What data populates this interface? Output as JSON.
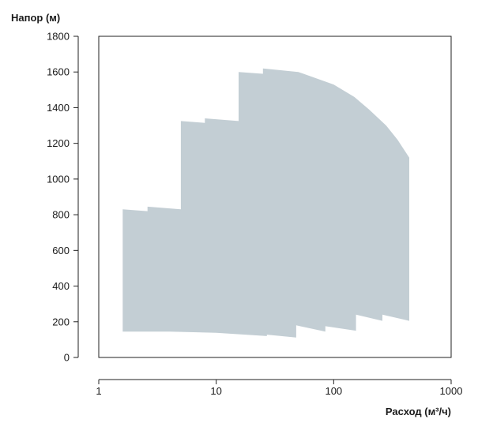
{
  "chart_data": {
    "type": "area",
    "ylabel": "Напор (м)",
    "xlabel": "Расход (м³/ч)",
    "x_scale": "log",
    "xlim": [
      1,
      1000
    ],
    "ylim": [
      0,
      1800
    ],
    "x_ticks": [
      1,
      10,
      100,
      1000
    ],
    "x_tick_labels": [
      "1",
      "10",
      "100",
      "1000"
    ],
    "y_ticks": [
      0,
      200,
      400,
      600,
      800,
      1000,
      1200,
      1400,
      1600,
      1800
    ],
    "y_tick_labels": [
      "0",
      "200",
      "400",
      "600",
      "800",
      "1000",
      "1200",
      "1400",
      "1600",
      "1800"
    ],
    "grid": false,
    "fill_color": "#c3ced4",
    "series": [
      {
        "boundary": [
          {
            "x": 1.6,
            "y": 830
          },
          {
            "x": 2.6,
            "y": 820
          },
          {
            "x": 2.6,
            "y": 845
          },
          {
            "x": 5.0,
            "y": 830
          },
          {
            "x": 5.0,
            "y": 1325
          },
          {
            "x": 8.0,
            "y": 1315
          },
          {
            "x": 8.0,
            "y": 1340
          },
          {
            "x": 15.5,
            "y": 1325
          },
          {
            "x": 15.5,
            "y": 1600
          },
          {
            "x": 25.0,
            "y": 1590
          },
          {
            "x": 25.0,
            "y": 1620
          },
          {
            "x": 50.0,
            "y": 1600
          },
          {
            "x": 100.0,
            "y": 1530
          },
          {
            "x": 150.0,
            "y": 1460
          },
          {
            "x": 200.0,
            "y": 1390
          },
          {
            "x": 280.0,
            "y": 1300
          },
          {
            "x": 350.0,
            "y": 1220
          },
          {
            "x": 440.0,
            "y": 1120
          },
          {
            "x": 440.0,
            "y": 205
          },
          {
            "x": 260.0,
            "y": 240
          },
          {
            "x": 260.0,
            "y": 205
          },
          {
            "x": 155.0,
            "y": 240
          },
          {
            "x": 155.0,
            "y": 150
          },
          {
            "x": 85.0,
            "y": 175
          },
          {
            "x": 85.0,
            "y": 145
          },
          {
            "x": 48.0,
            "y": 180
          },
          {
            "x": 48.0,
            "y": 112
          },
          {
            "x": 27.0,
            "y": 128
          },
          {
            "x": 27.0,
            "y": 120
          },
          {
            "x": 10.0,
            "y": 138
          },
          {
            "x": 4.0,
            "y": 145
          },
          {
            "x": 1.6,
            "y": 145
          }
        ]
      }
    ]
  }
}
